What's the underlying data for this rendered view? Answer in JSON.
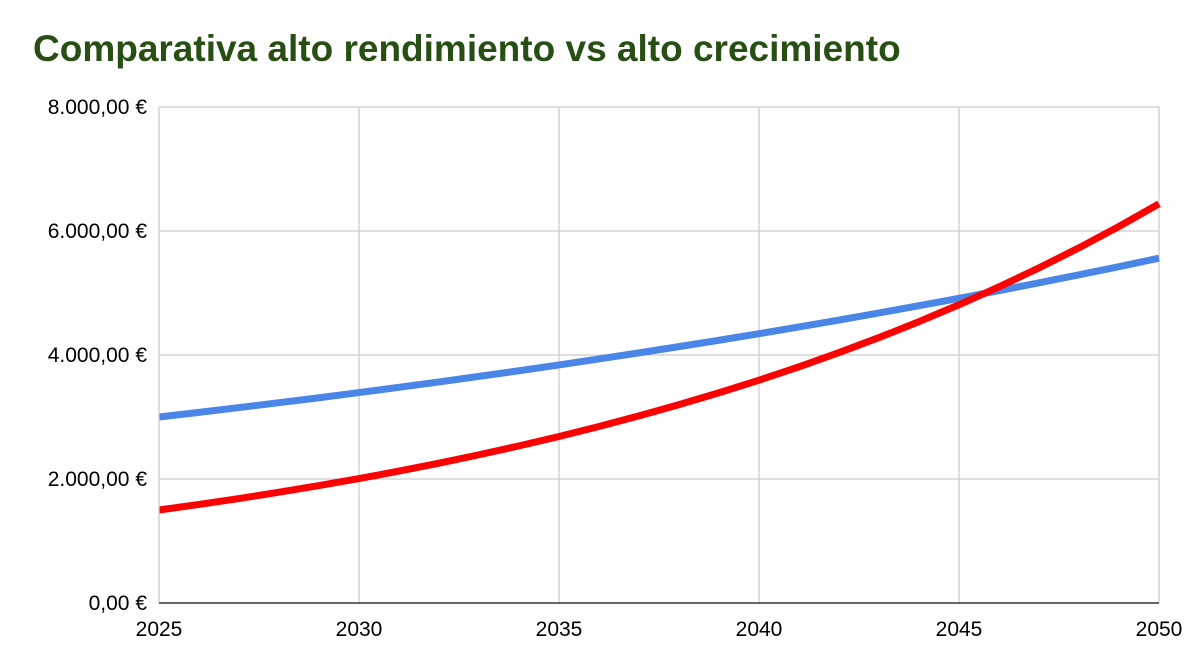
{
  "chart_data": {
    "type": "line",
    "title": "Comparativa alto rendimiento vs alto crecimiento",
    "xlabel": "",
    "ylabel": "",
    "x": [
      2025,
      2026,
      2027,
      2028,
      2029,
      2030,
      2031,
      2032,
      2033,
      2034,
      2035,
      2036,
      2037,
      2038,
      2039,
      2040,
      2041,
      2042,
      2043,
      2044,
      2045,
      2046,
      2047,
      2048,
      2049,
      2050
    ],
    "series": [
      {
        "values": [
          3000,
          3075,
          3152,
          3231,
          3311,
          3394,
          3479,
          3566,
          3655,
          3746,
          3840,
          3936,
          4034,
          4135,
          4238,
          4344,
          4453,
          4564,
          4678,
          4795,
          4915,
          5038,
          5164,
          5293,
          5425,
          5561
        ],
        "color": "#4a86e8"
      },
      {
        "values": [
          1500,
          1590,
          1685,
          1787,
          1894,
          2007,
          2128,
          2255,
          2391,
          2534,
          2686,
          2847,
          3018,
          3199,
          3391,
          3594,
          3810,
          4039,
          4281,
          4538,
          4810,
          5099,
          5405,
          5729,
          6073,
          6438
        ],
        "color": "#ff0000"
      }
    ],
    "xlim": [
      2025,
      2050
    ],
    "ylim": [
      0,
      8000
    ],
    "x_ticks": [
      2025,
      2030,
      2035,
      2040,
      2045,
      2050
    ],
    "x_tick_labels": [
      "2025",
      "2030",
      "2035",
      "2040",
      "2045",
      "2050"
    ],
    "y_ticks": [
      0,
      2000,
      4000,
      6000,
      8000
    ],
    "y_tick_labels": [
      "0,00 €",
      "2.000,00 €",
      "4.000,00 €",
      "6.000,00 €",
      "8.000,00 €"
    ],
    "grid": true,
    "legend": "none",
    "colors": {
      "title": "#274e13",
      "grid": "#cccccc",
      "axis": "#333333"
    }
  }
}
